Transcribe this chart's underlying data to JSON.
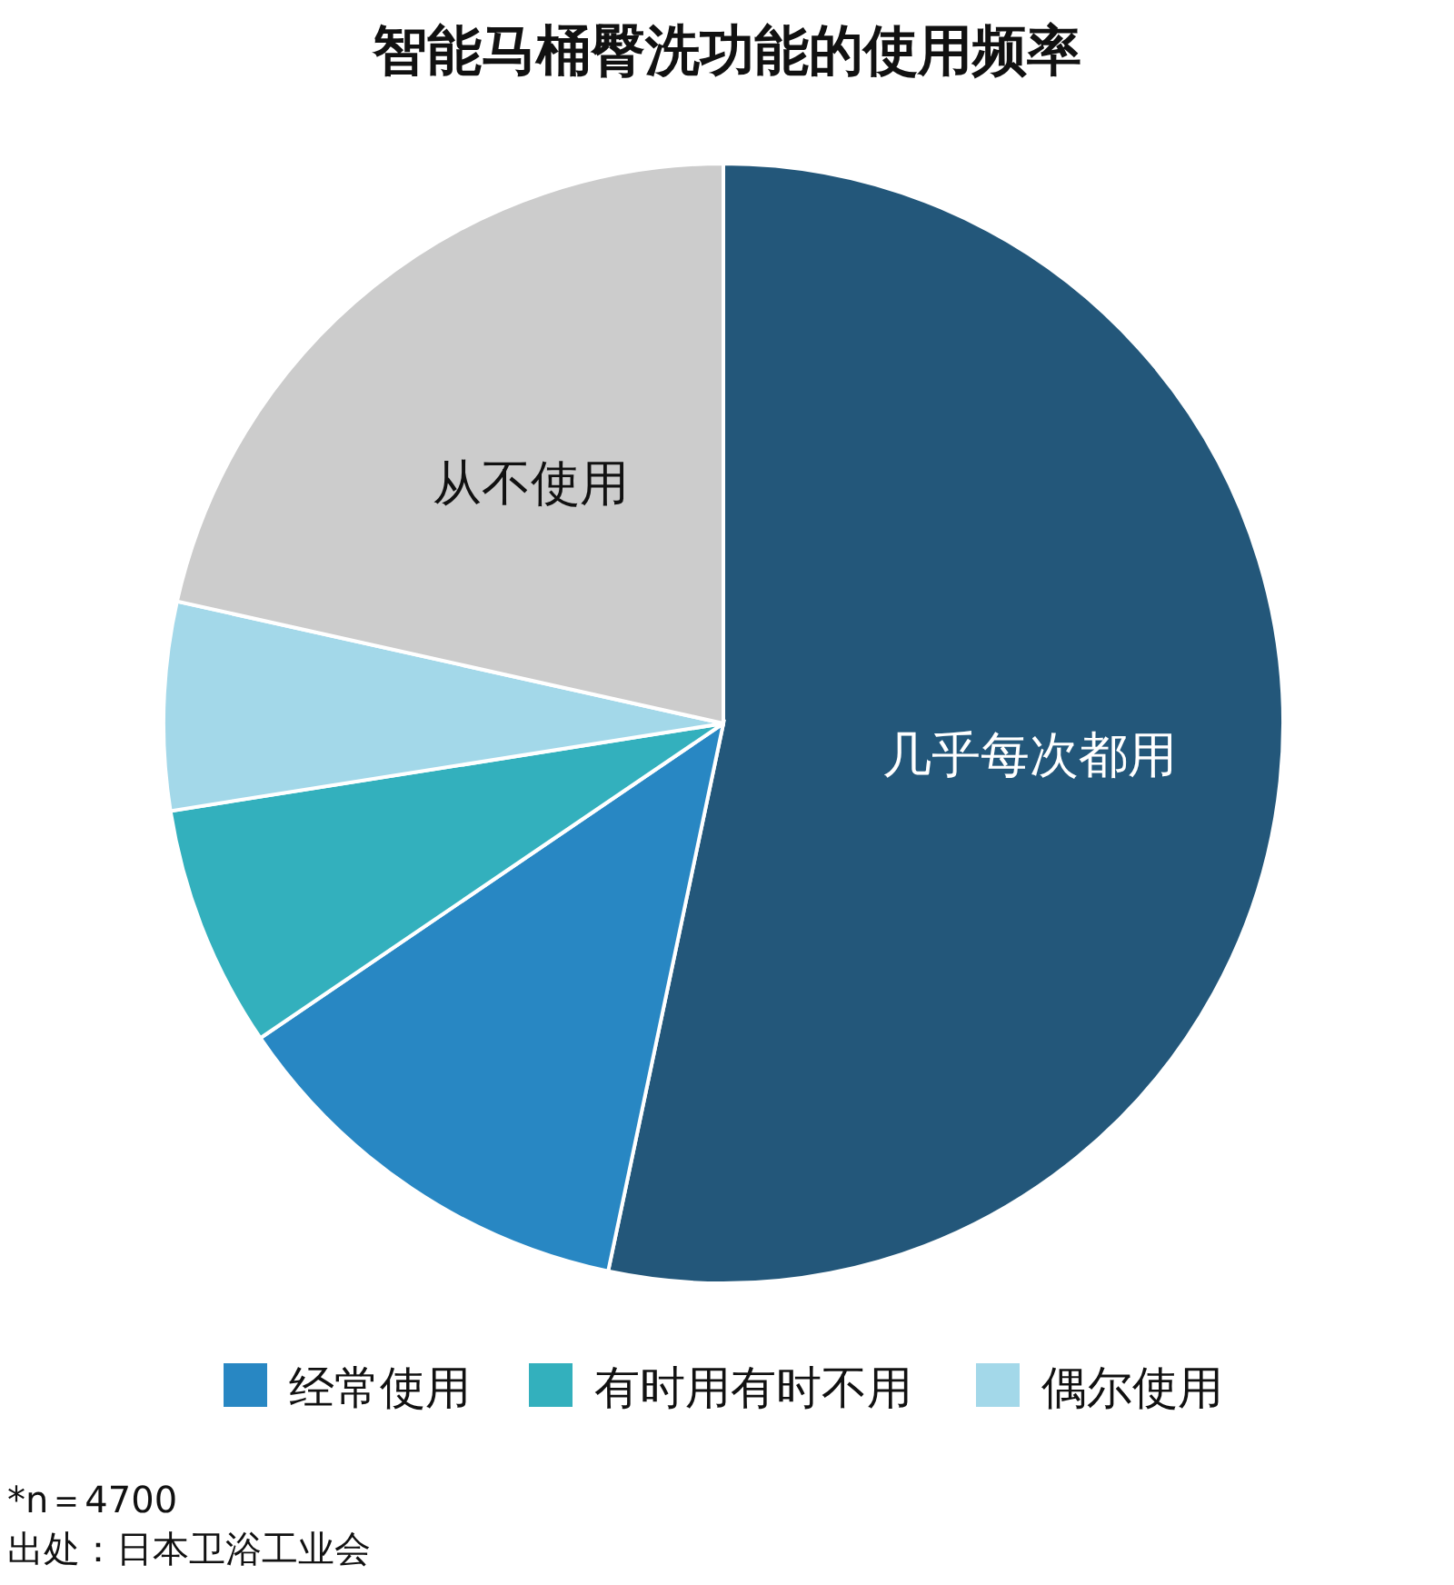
{
  "chart_data": {
    "type": "pie",
    "title": "智能马桶臀洗功能的使用频率",
    "categories": [
      "几乎每次都用",
      "经常使用",
      "有时用有时不用",
      "偶尔使用",
      "从不使用"
    ],
    "values": [
      53.3,
      12.2,
      7.0,
      6.0,
      21.5
    ],
    "colors": [
      "#23577a",
      "#2887c3",
      "#33b0bd",
      "#a3d8e9",
      "#cccccc"
    ],
    "legend": "bottom",
    "annotations": [
      "*n＝4700",
      "出处：日本卫浴工业会"
    ]
  }
}
